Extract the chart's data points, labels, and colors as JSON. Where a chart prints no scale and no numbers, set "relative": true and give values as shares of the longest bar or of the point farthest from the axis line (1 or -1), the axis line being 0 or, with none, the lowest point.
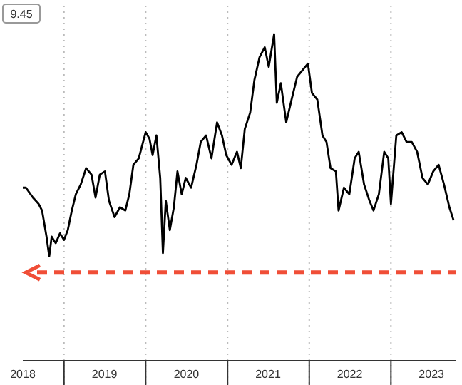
{
  "chart_data": {
    "type": "line",
    "relative": true,
    "annotations": [
      "9.45"
    ],
    "grid": "x",
    "marker": "none",
    "line_style": "solid",
    "xlim": [
      "2018-07-01",
      "2023-10-20"
    ],
    "xticks": [
      {
        "value": "2018-07-01",
        "label": "2018"
      },
      {
        "value": "2019-01-01",
        "label": null
      },
      {
        "value": "2019-07-01",
        "label": "2019"
      },
      {
        "value": "2020-01-01",
        "label": null
      },
      {
        "value": "2020-07-01",
        "label": "2020"
      },
      {
        "value": "2021-01-01",
        "label": null
      },
      {
        "value": "2021-07-01",
        "label": "2021"
      },
      {
        "value": "2022-01-01",
        "label": null
      },
      {
        "value": "2022-07-01",
        "label": "2022"
      },
      {
        "value": "2023-01-01",
        "label": null
      },
      {
        "value": "2023-07-01",
        "label": "2023"
      }
    ],
    "ref_lines": [
      {
        "axis": "y",
        "value": 0.27,
        "label": null,
        "color": "#f04e37",
        "line_style": "dashed"
      }
    ],
    "series": [
      {
        "color": "#000000",
        "x": [
          "2018-07-01",
          "2018-07-15",
          "2018-08-15",
          "2018-09-10",
          "2018-09-25",
          "2018-10-15",
          "2018-10-27",
          "2018-11-07",
          "2018-11-25",
          "2018-12-14",
          "2019-01-01",
          "2019-01-18",
          "2019-02-05",
          "2019-02-23",
          "2019-03-17",
          "2019-04-10",
          "2019-05-04",
          "2019-05-22",
          "2019-06-10",
          "2019-07-03",
          "2019-07-21",
          "2019-08-15",
          "2019-09-08",
          "2019-10-02",
          "2019-10-20",
          "2019-11-07",
          "2019-12-01",
          "2020-01-01",
          "2020-01-18",
          "2020-02-01",
          "2020-02-18",
          "2020-03-06",
          "2020-03-18",
          "2020-03-31",
          "2020-04-18",
          "2020-05-06",
          "2020-05-22",
          "2020-06-10",
          "2020-06-28",
          "2020-07-22",
          "2020-08-15",
          "2020-09-03",
          "2020-09-27",
          "2020-10-21",
          "2020-11-15",
          "2020-12-07",
          "2020-12-26",
          "2021-01-19",
          "2021-02-12",
          "2021-03-01",
          "2021-03-19",
          "2021-04-12",
          "2021-05-01",
          "2021-05-24",
          "2021-06-16",
          "2021-07-04",
          "2021-07-28",
          "2021-08-09",
          "2021-08-27",
          "2021-09-20",
          "2021-10-14",
          "2021-11-08",
          "2021-12-02",
          "2021-12-26",
          "2022-01-13",
          "2022-02-06",
          "2022-03-01",
          "2022-03-19",
          "2022-04-06",
          "2022-04-30",
          "2022-05-12",
          "2022-06-05",
          "2022-06-29",
          "2022-07-23",
          "2022-08-10",
          "2022-09-03",
          "2022-09-27",
          "2022-10-15",
          "2022-11-08",
          "2022-12-02",
          "2022-12-20",
          "2023-01-01",
          "2023-01-25",
          "2023-02-18",
          "2023-03-12",
          "2023-04-04",
          "2023-04-28",
          "2023-05-22",
          "2023-06-15",
          "2023-07-09",
          "2023-08-02",
          "2023-08-26",
          "2023-09-19",
          "2023-10-08"
        ],
        "values": [
          0.53,
          0.53,
          0.5,
          0.48,
          0.46,
          0.38,
          0.32,
          0.38,
          0.36,
          0.39,
          0.37,
          0.4,
          0.46,
          0.51,
          0.54,
          0.59,
          0.57,
          0.5,
          0.57,
          0.58,
          0.49,
          0.44,
          0.47,
          0.46,
          0.51,
          0.6,
          0.62,
          0.7,
          0.68,
          0.63,
          0.69,
          0.56,
          0.33,
          0.49,
          0.4,
          0.47,
          0.58,
          0.51,
          0.56,
          0.53,
          0.6,
          0.67,
          0.69,
          0.62,
          0.73,
          0.69,
          0.63,
          0.6,
          0.64,
          0.59,
          0.71,
          0.76,
          0.86,
          0.93,
          0.96,
          0.9,
          1,
          0.79,
          0.85,
          0.73,
          0.8,
          0.87,
          0.89,
          0.91,
          0.82,
          0.8,
          0.69,
          0.67,
          0.59,
          0.58,
          0.46,
          0.53,
          0.51,
          0.62,
          0.64,
          0.54,
          0.49,
          0.46,
          0.51,
          0.64,
          0.62,
          0.48,
          0.69,
          0.7,
          0.67,
          0.67,
          0.64,
          0.56,
          0.54,
          0.58,
          0.6,
          0.54,
          0.47,
          0.43
        ]
      }
    ]
  }
}
